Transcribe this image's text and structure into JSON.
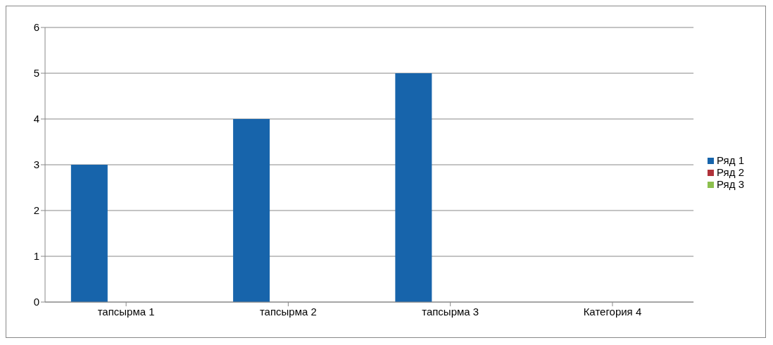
{
  "chart_data": {
    "type": "bar",
    "categories": [
      "тапсырма 1",
      "тапсырма 2",
      "тапсырма 3",
      "Категория 4"
    ],
    "series": [
      {
        "name": "Ряд 1",
        "color": "#1764ab",
        "values": [
          3,
          4,
          5,
          null
        ]
      },
      {
        "name": "Ряд 2",
        "color": "#b0323a",
        "values": [
          null,
          null,
          null,
          null
        ]
      },
      {
        "name": "Ряд 3",
        "color": "#8cbf4e",
        "values": [
          null,
          null,
          null,
          null
        ]
      }
    ],
    "ylim": [
      0,
      6
    ],
    "yticks": [
      0,
      1,
      2,
      3,
      4,
      5,
      6
    ],
    "grid": "y",
    "legend": "right"
  }
}
